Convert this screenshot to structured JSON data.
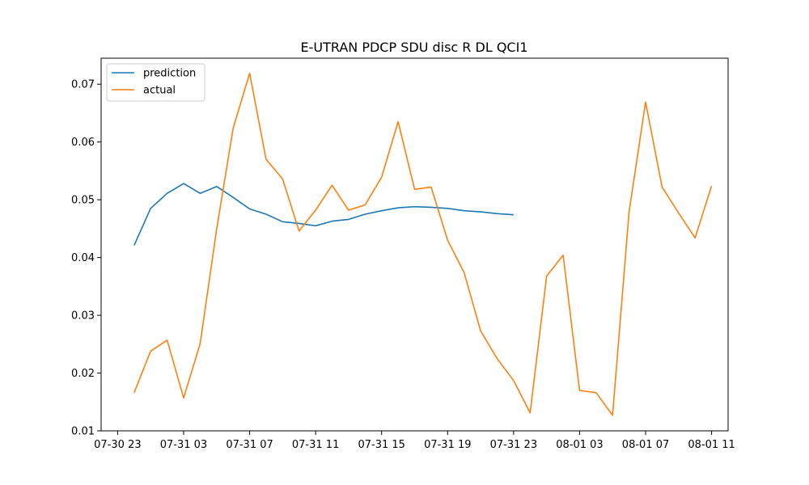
{
  "chart_data": {
    "type": "line",
    "title": "E-UTRAN PDCP SDU disc R DL QCI1",
    "xlabel": "",
    "ylabel": "",
    "x_ticks": [
      "07-30 23",
      "07-31 03",
      "07-31 07",
      "07-31 11",
      "07-31 15",
      "07-31 19",
      "07-31 23",
      "08-01 03",
      "08-01 07",
      "08-01 11"
    ],
    "y_ticks": [
      "0.01",
      "0.02",
      "0.03",
      "0.04",
      "0.05",
      "0.06",
      "0.07"
    ],
    "xlim": [
      "2023-07-30 22:00",
      "2023-08-01 12:00"
    ],
    "ylim": [
      0.01,
      0.0745
    ],
    "grid": false,
    "legend": "top-left",
    "series": [
      {
        "name": "prediction",
        "color": "#1f77b4",
        "x": [
          "2023-07-31 00:00",
          "2023-07-31 01:00",
          "2023-07-31 02:00",
          "2023-07-31 03:00",
          "2023-07-31 04:00",
          "2023-07-31 05:00",
          "2023-07-31 06:00",
          "2023-07-31 07:00",
          "2023-07-31 08:00",
          "2023-07-31 09:00",
          "2023-07-31 10:00",
          "2023-07-31 11:00",
          "2023-07-31 12:00",
          "2023-07-31 13:00",
          "2023-07-31 14:00",
          "2023-07-31 15:00",
          "2023-07-31 16:00",
          "2023-07-31 17:00",
          "2023-07-31 18:00",
          "2023-07-31 19:00",
          "2023-07-31 20:00",
          "2023-07-31 21:00",
          "2023-07-31 22:00",
          "2023-07-31 23:00"
        ],
        "values": [
          0.0421,
          0.0485,
          0.0511,
          0.0528,
          0.0511,
          0.0523,
          0.0504,
          0.0484,
          0.0475,
          0.0462,
          0.0459,
          0.0455,
          0.0463,
          0.0466,
          0.0475,
          0.0481,
          0.0486,
          0.0488,
          0.0487,
          0.0485,
          0.0481,
          0.0479,
          0.0476,
          0.0474
        ]
      },
      {
        "name": "actual",
        "color": "#ff7f0e",
        "x": [
          "2023-07-31 00:00",
          "2023-07-31 01:00",
          "2023-07-31 02:00",
          "2023-07-31 03:00",
          "2023-07-31 04:00",
          "2023-07-31 05:00",
          "2023-07-31 06:00",
          "2023-07-31 07:00",
          "2023-07-31 08:00",
          "2023-07-31 09:00",
          "2023-07-31 10:00",
          "2023-07-31 11:00",
          "2023-07-31 12:00",
          "2023-07-31 13:00",
          "2023-07-31 14:00",
          "2023-07-31 15:00",
          "2023-07-31 16:00",
          "2023-07-31 17:00",
          "2023-07-31 18:00",
          "2023-07-31 19:00",
          "2023-07-31 20:00",
          "2023-07-31 21:00",
          "2023-07-31 22:00",
          "2023-07-31 23:00",
          "2023-08-01 00:00",
          "2023-08-01 01:00",
          "2023-08-01 02:00",
          "2023-08-01 03:00",
          "2023-08-01 04:00",
          "2023-08-01 05:00",
          "2023-08-01 06:00",
          "2023-08-01 07:00",
          "2023-08-01 08:00",
          "2023-08-01 09:00",
          "2023-08-01 10:00",
          "2023-08-01 11:00"
        ],
        "values": [
          0.0166,
          0.0238,
          0.0257,
          0.0157,
          0.0251,
          0.0449,
          0.0624,
          0.0719,
          0.057,
          0.0536,
          0.0446,
          0.0482,
          0.0525,
          0.0482,
          0.0491,
          0.0539,
          0.0635,
          0.0518,
          0.0522,
          0.043,
          0.0374,
          0.0273,
          0.0225,
          0.0187,
          0.0131,
          0.0368,
          0.0404,
          0.017,
          0.0166,
          0.0127,
          0.0479,
          0.0669,
          0.0522,
          0.0477,
          0.0434,
          0.0524
        ]
      }
    ]
  }
}
